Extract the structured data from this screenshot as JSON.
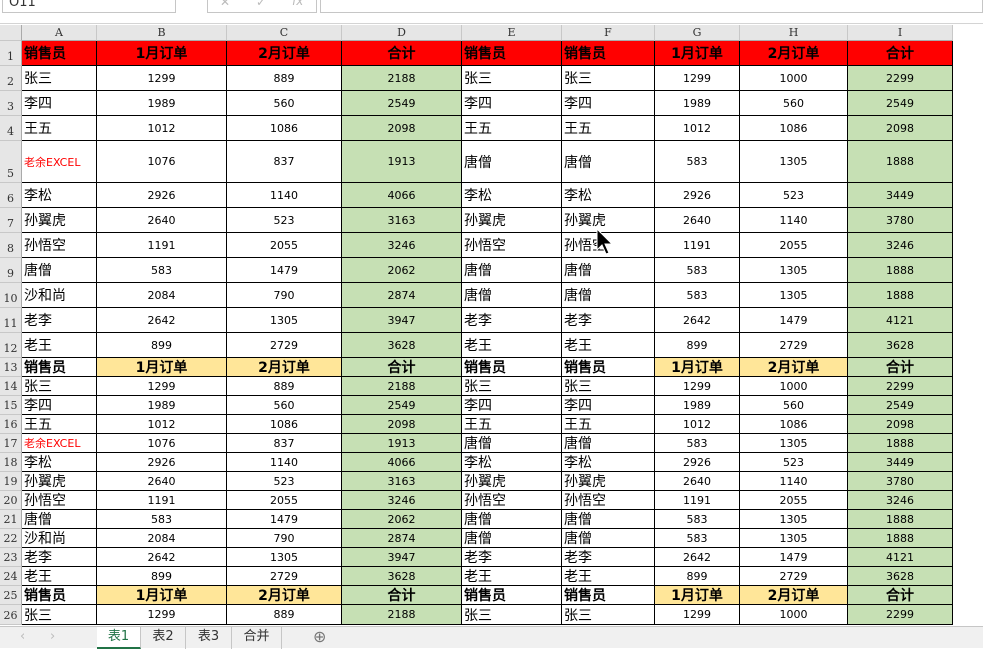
{
  "namebox": "O11",
  "columns": [
    "A",
    "B",
    "C",
    "D",
    "E",
    "F",
    "G",
    "H",
    "I"
  ],
  "header": [
    "销售员",
    "1月订单",
    "2月订单",
    "合计",
    "销售员",
    "销售员",
    "1月订单",
    "2月订单",
    "合计"
  ],
  "rows": [
    [
      "张三",
      "1299",
      "889",
      "2188",
      "张三",
      "张三",
      "1299",
      "1000",
      "2299"
    ],
    [
      "李四",
      "1989",
      "560",
      "2549",
      "李四",
      "李四",
      "1989",
      "560",
      "2549"
    ],
    [
      "王五",
      "1012",
      "1086",
      "2098",
      "王五",
      "王五",
      "1012",
      "1086",
      "2098"
    ],
    [
      "老余EXCEL",
      "1076",
      "837",
      "1913",
      "唐僧",
      "唐僧",
      "583",
      "1305",
      "1888"
    ],
    [
      "李松",
      "2926",
      "1140",
      "4066",
      "李松",
      "李松",
      "2926",
      "523",
      "3449"
    ],
    [
      "孙翼虎",
      "2640",
      "523",
      "3163",
      "孙翼虎",
      "孙翼虎",
      "2640",
      "1140",
      "3780"
    ],
    [
      "孙悟空",
      "1191",
      "2055",
      "3246",
      "孙悟空",
      "孙悟空",
      "1191",
      "2055",
      "3246"
    ],
    [
      "唐僧",
      "583",
      "1479",
      "2062",
      "唐僧",
      "唐僧",
      "583",
      "1305",
      "1888"
    ],
    [
      "沙和尚",
      "2084",
      "790",
      "2874",
      "唐僧",
      "唐僧",
      "583",
      "1305",
      "1888"
    ],
    [
      "老李",
      "2642",
      "1305",
      "3947",
      "老李",
      "老李",
      "2642",
      "1479",
      "4121"
    ],
    [
      "老王",
      "899",
      "2729",
      "3628",
      "老王",
      "老王",
      "899",
      "2729",
      "3628"
    ]
  ],
  "colors": {
    "header_red": "#FF0000",
    "header_yellow": "#FFE699",
    "sum_green": "#C6E0B4",
    "highlight_text": "#FF0000"
  },
  "sheet_tabs": [
    {
      "label": "表1",
      "active": true
    },
    {
      "label": "表2"
    },
    {
      "label": "表3"
    },
    {
      "label": "合并"
    }
  ]
}
